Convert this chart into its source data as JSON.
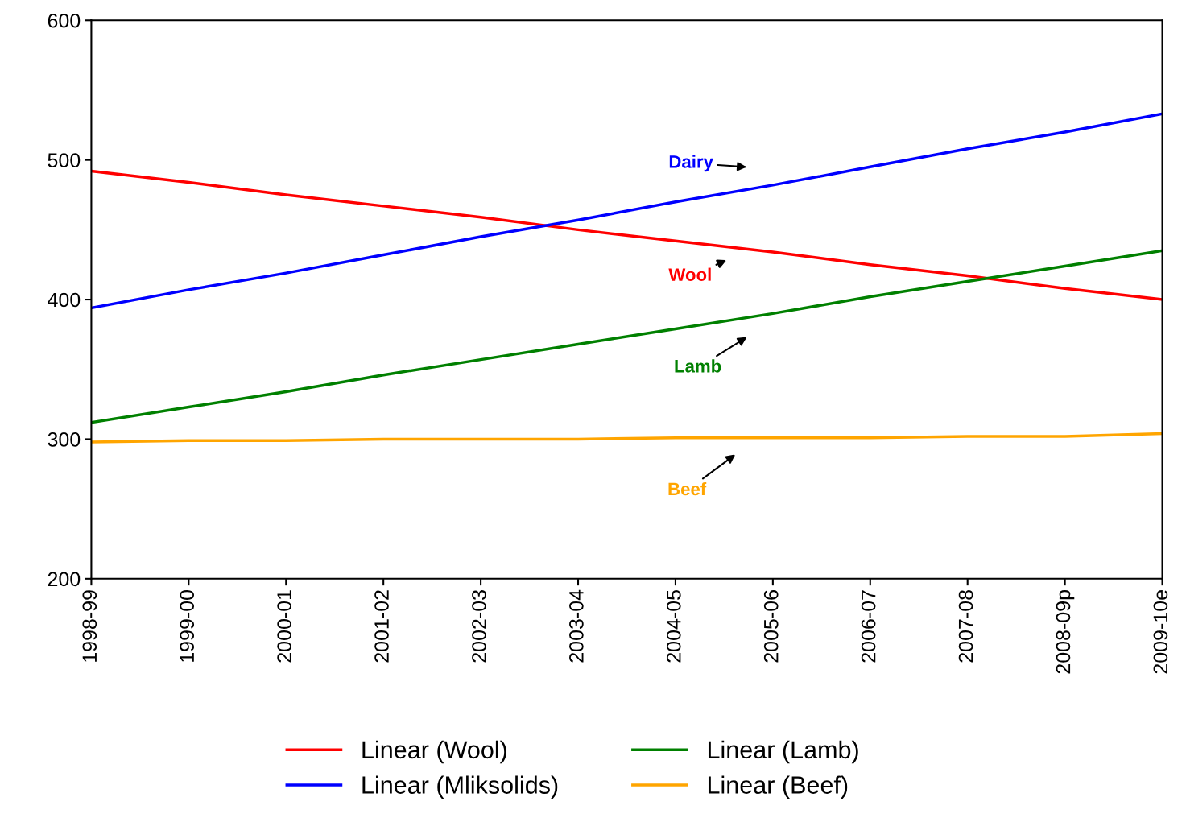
{
  "chart_data": {
    "type": "line",
    "categories": [
      "1998-99",
      "1999-00",
      "2000-01",
      "2001-02",
      "2002-03",
      "2003-04",
      "2004-05",
      "2005-06",
      "2006-07",
      "2007-08",
      "2008-09p",
      "2009-10e"
    ],
    "series": [
      {
        "name": "Linear (Wool)",
        "color": "#ff0000",
        "values": [
          492,
          484,
          475,
          467,
          459,
          450,
          442,
          434,
          425,
          417,
          408,
          400
        ]
      },
      {
        "name": "Linear (Mliksolids)",
        "color": "#0000ff",
        "values": [
          394,
          407,
          419,
          432,
          445,
          457,
          470,
          482,
          495,
          508,
          520,
          533
        ]
      },
      {
        "name": "Linear (Lamb)",
        "color": "#008000",
        "values": [
          312,
          323,
          334,
          346,
          357,
          368,
          379,
          390,
          402,
          413,
          424,
          435
        ]
      },
      {
        "name": "Linear (Beef)",
        "color": "#ffa500",
        "values": [
          298,
          299,
          299,
          300,
          300,
          300,
          301,
          301,
          301,
          302,
          302,
          304
        ]
      }
    ],
    "annotations": [
      "Dairy",
      "Wool",
      "Lamb",
      "Beef"
    ],
    "ylim": [
      200,
      600
    ],
    "yticks": [
      200,
      300,
      400,
      500,
      600
    ],
    "grid": false,
    "legend": "bottom",
    "marker": "none",
    "line_style": "solid"
  }
}
